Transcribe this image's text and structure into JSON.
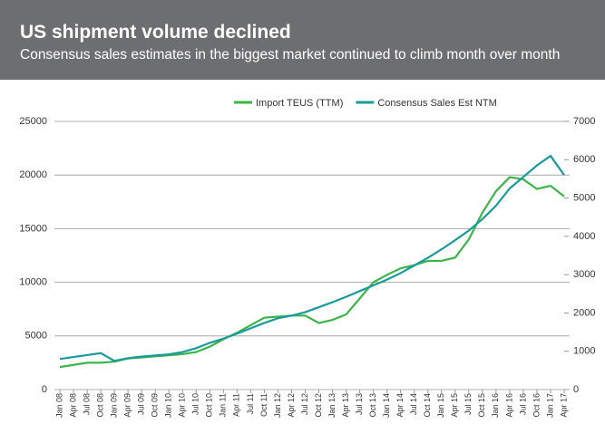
{
  "chart_data": {
    "type": "line",
    "title": "US shipment volume declined",
    "subtitle": "Consensus sales estimates in the biggest market continued to climb month over month",
    "categories": [
      "Jan 08",
      "Apr 08",
      "Jul 08",
      "Oct 08",
      "Jan 09",
      "Apr 09",
      "Jul 09",
      "Oct 09",
      "Jan 10",
      "Apr 10",
      "Jul 10",
      "Oct 10",
      "Jan 11",
      "Apr 11",
      "Jul 11",
      "Oct 11",
      "Jan 12",
      "Apr 12",
      "Jul 12",
      "Oct 12",
      "Jan 13",
      "Apr 13",
      "Jul 13",
      "Oct 13",
      "Jan 14",
      "Apr 14",
      "Jul 14",
      "Oct 14",
      "Jan 15",
      "Apr 15",
      "Jul 15",
      "Oct 15",
      "Jan 16",
      "Apr 16",
      "Jul 16",
      "Oct 16",
      "Jan 17",
      "Apr 17"
    ],
    "series": [
      {
        "name": "Import TEUS (TTM)",
        "color": "#3bb54a",
        "axis": "y",
        "values": [
          2100,
          2300,
          2500,
          2500,
          2600,
          2900,
          3000,
          3100,
          3200,
          3300,
          3500,
          4000,
          4700,
          5300,
          6000,
          6700,
          6800,
          6900,
          6900,
          6200,
          6500,
          7000,
          8500,
          10000,
          10700,
          11300,
          11600,
          12000,
          12000,
          12300,
          14000,
          16500,
          18500,
          19800,
          19600,
          18700,
          19000,
          18000
        ]
      },
      {
        "name": "Consensus Sales Est NTM",
        "color": "#1a9a9a",
        "axis": "y2",
        "values": [
          800,
          850,
          900,
          950,
          750,
          820,
          860,
          890,
          920,
          980,
          1080,
          1220,
          1330,
          1460,
          1600,
          1740,
          1860,
          1930,
          2020,
          2150,
          2280,
          2420,
          2570,
          2720,
          2870,
          3040,
          3240,
          3440,
          3660,
          3900,
          4150,
          4450,
          4800,
          5250,
          5550,
          5850,
          6100,
          5600
        ]
      }
    ],
    "ylim": [
      0,
      25000
    ],
    "yticks": [
      0,
      5000,
      10000,
      15000,
      20000,
      25000
    ],
    "y2lim": [
      0,
      7000
    ],
    "y2ticks": [
      0,
      1000,
      2000,
      3000,
      4000,
      5000,
      6000,
      7000
    ],
    "grid": true
  }
}
